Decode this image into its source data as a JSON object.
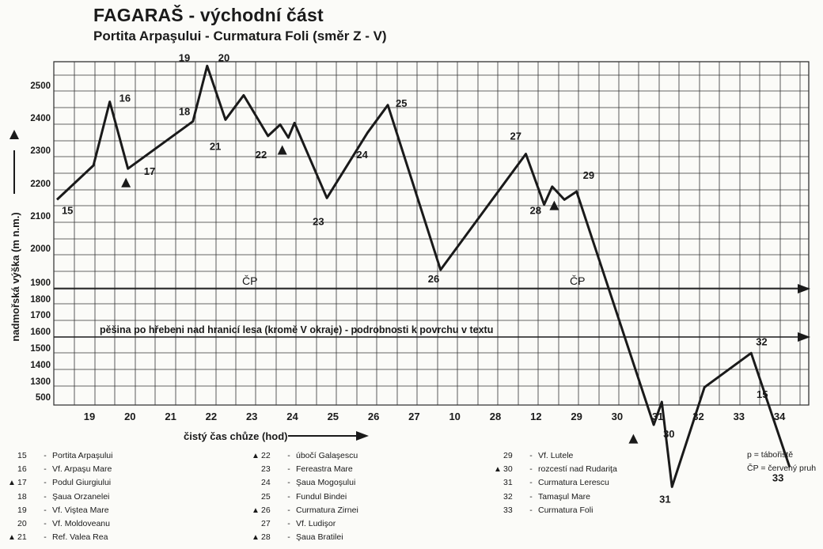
{
  "title": "FAGARAŠ - východní část",
  "subtitle": "Portita Arpaşului - Curmatura Foli (směr Z - V)",
  "chart_data": {
    "type": "line",
    "ylabel": "nadmořská výška (m n.m.)",
    "xlabel": "čistý čas chůze (hod)",
    "y_ticks": [
      "2500",
      "2400",
      "2300",
      "2200",
      "2100",
      "2000",
      "1900",
      "1800",
      "1700",
      "1600",
      "1500",
      "1400",
      "1300",
      "500"
    ],
    "x_ticks": [
      "19",
      "20",
      "21",
      "22",
      "23",
      "24",
      "25",
      "26",
      "27",
      "10",
      "28",
      "12",
      "29",
      "30",
      "31",
      "32",
      "33",
      "34"
    ],
    "route_label_1": "ČP",
    "route_label_2": "ČP",
    "trail_note": "pěšina po hřebeni nad hranicí lesa (kromě V okraje) - podrobnosti k povrchu v textu",
    "profile": [
      {
        "t": -0.8,
        "alt": 2150
      },
      {
        "t": 0.1,
        "alt": 2255
      },
      {
        "t": 0.5,
        "alt": 2450
      },
      {
        "t": 0.95,
        "alt": 2245
      },
      {
        "t": 2.55,
        "alt": 2390
      },
      {
        "t": 2.9,
        "alt": 2560
      },
      {
        "t": 3.35,
        "alt": 2395
      },
      {
        "t": 3.8,
        "alt": 2470
      },
      {
        "t": 4.4,
        "alt": 2345
      },
      {
        "t": 4.7,
        "alt": 2380
      },
      {
        "t": 4.9,
        "alt": 2340
      },
      {
        "t": 5.05,
        "alt": 2385
      },
      {
        "t": 5.85,
        "alt": 2155
      },
      {
        "t": 6.85,
        "alt": 2355
      },
      {
        "t": 7.35,
        "alt": 2440
      },
      {
        "t": 8.65,
        "alt": 1935
      },
      {
        "t": 10.75,
        "alt": 2290
      },
      {
        "t": 11.2,
        "alt": 2135
      },
      {
        "t": 11.4,
        "alt": 2190
      },
      {
        "t": 11.7,
        "alt": 2150
      },
      {
        "t": 12.0,
        "alt": 2175
      },
      {
        "t": 13.9,
        "alt": 1460
      },
      {
        "t": 14.1,
        "alt": 1530
      },
      {
        "t": 14.35,
        "alt": 1270
      },
      {
        "t": 15.15,
        "alt": 1575
      },
      {
        "t": 16.3,
        "alt": 1680
      },
      {
        "t": 17.25,
        "alt": 1330
      }
    ],
    "point_labels": [
      {
        "text": "15",
        "t": -0.8,
        "alt": 2150
      },
      {
        "text": "16",
        "t": 0.5,
        "alt": 2450
      },
      {
        "text": "17",
        "t": 0.95,
        "alt": 2245
      },
      {
        "text": "18",
        "t": 2.55,
        "alt": 2390
      },
      {
        "text": "19",
        "t": 2.9,
        "alt": 2560
      },
      {
        "text": "20",
        "t": 2.9,
        "alt": 2560
      },
      {
        "text": "21",
        "t": 3.35,
        "alt": 2395
      },
      {
        "text": "22",
        "t": 4.4,
        "alt": 2345
      },
      {
        "text": "23",
        "t": 5.85,
        "alt": 2155
      },
      {
        "text": "24",
        "t": 6.85,
        "alt": 2355
      },
      {
        "text": "25",
        "t": 7.35,
        "alt": 2440
      },
      {
        "text": "26",
        "t": 8.65,
        "alt": 1935
      },
      {
        "text": "27",
        "t": 10.75,
        "alt": 2290
      },
      {
        "text": "28",
        "t": 11.2,
        "alt": 2135
      },
      {
        "text": "29",
        "t": 12.0,
        "alt": 2175
      },
      {
        "text": "30",
        "t": 13.9,
        "alt": 1460
      },
      {
        "text": "31",
        "t": 14.35,
        "alt": 1270
      },
      {
        "text": "15",
        "t": 15.7,
        "alt": 1620
      },
      {
        "text": "32",
        "t": 16.3,
        "alt": 1680
      },
      {
        "text": "33",
        "t": 17.25,
        "alt": 1330
      }
    ],
    "shelters": [
      {
        "t": 0.9,
        "alt": 2200
      },
      {
        "t": 4.75,
        "alt": 2300
      },
      {
        "t": 11.45,
        "alt": 2130
      },
      {
        "t": 13.4,
        "alt": 1415
      }
    ]
  },
  "legend": {
    "col1": [
      {
        "tri": false,
        "num": "15",
        "name": "Portita Arpaşului"
      },
      {
        "tri": false,
        "num": "16",
        "name": "Vf. Arpaşu Mare"
      },
      {
        "tri": true,
        "num": "17",
        "name": "Podul Giurgiului"
      },
      {
        "tri": false,
        "num": "18",
        "name": "Şaua Orzanelei"
      },
      {
        "tri": false,
        "num": "19",
        "name": "Vf. Viştea Mare"
      },
      {
        "tri": false,
        "num": "20",
        "name": "Vf. Moldoveanu"
      },
      {
        "tri": true,
        "num": "21",
        "name": "Ref. Valea Rea"
      }
    ],
    "col2": [
      {
        "tri": true,
        "num": "22",
        "name": "úbočí Galaşescu"
      },
      {
        "tri": false,
        "num": "23",
        "name": "Fereastra Mare"
      },
      {
        "tri": false,
        "num": "24",
        "name": "Şaua Mogoşului"
      },
      {
        "tri": false,
        "num": "25",
        "name": "Fundul Bindei"
      },
      {
        "tri": true,
        "num": "26",
        "name": "Curmatura Zirnei"
      },
      {
        "tri": false,
        "num": "27",
        "name": "Vf. Ludişor"
      },
      {
        "tri": true,
        "num": "28",
        "name": "Şaua Bratilei"
      }
    ],
    "col3": [
      {
        "tri": false,
        "num": "29",
        "name": "Vf. Lutele"
      },
      {
        "tri": true,
        "num": "30",
        "name": "rozcestí nad Rudariţa"
      },
      {
        "tri": false,
        "num": "31",
        "name": "Curmatura Lerescu"
      },
      {
        "tri": false,
        "num": "32",
        "name": "Tamaşul Mare"
      },
      {
        "tri": false,
        "num": "33",
        "name": "Curmatura Foli"
      }
    ],
    "notes": [
      "p = tábořiště",
      "ČP = červený pruh"
    ]
  }
}
